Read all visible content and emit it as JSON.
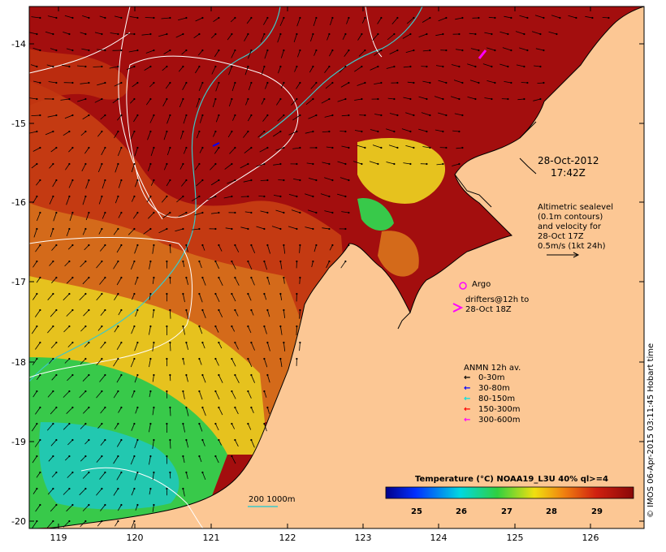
{
  "map": {
    "type": "sea-surface-temperature-map",
    "lon_ticks": [
      "119",
      "120",
      "121",
      "122",
      "123",
      "124",
      "125",
      "126"
    ],
    "lat_ticks": [
      "-14",
      "-15",
      "-16",
      "-17",
      "-18",
      "-19",
      "-20"
    ],
    "lon_range": [
      118.65,
      126.65
    ],
    "lat_range": [
      -20.1,
      -13.6
    ]
  },
  "annotations": {
    "timestamp_line1": "28-Oct-2012",
    "timestamp_line2": "17:42Z",
    "altimetry": [
      "Altimetric sealevel",
      "(0.1m contours)",
      "and velocity for",
      "28-Oct 17Z",
      "0.5m/s (1kt 24h)"
    ],
    "argo_label": "Argo",
    "drifters_line1": "drifters@12h to",
    "drifters_line2": "28-Oct 18Z",
    "bathymetry_label": "200  1000m"
  },
  "legend": {
    "title": "ANMN 12h av.",
    "items": [
      {
        "label": "0-30m",
        "color": "#000000"
      },
      {
        "label": "30-80m",
        "color": "#0000ff"
      },
      {
        "label": "80-150m",
        "color": "#00e0e0"
      },
      {
        "label": "150-300m",
        "color": "#ff0000"
      },
      {
        "label": "300-600m",
        "color": "#ff00ff"
      }
    ]
  },
  "colorbar": {
    "title": "Temperature (°C) NOAA19_L3U 40% ql>=4",
    "ticks": [
      "25",
      "26",
      "27",
      "28",
      "29"
    ],
    "range": [
      24.3,
      29.8
    ]
  },
  "credit": "© IMOS 06-Apr-2015 03:11:45 Hobart time",
  "colors": {
    "land": "#fcc794",
    "sst_hot": "#a30e0e",
    "sst_warm": "#c43a12",
    "sst_orange": "#d46a1a",
    "sst_yellow": "#e6c21e",
    "sst_green": "#38c94a",
    "sst_teal": "#22c8b0",
    "contour": "#ffffff",
    "isobath": "#3cc8c8",
    "argo": "#ff00ff"
  }
}
